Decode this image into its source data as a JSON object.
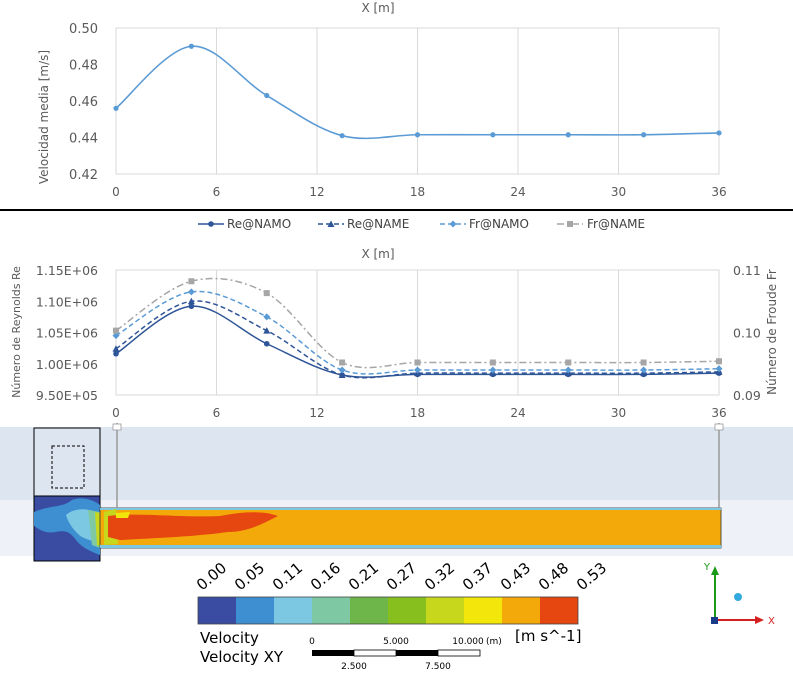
{
  "chart_data": [
    {
      "type": "line",
      "xlabel": "X [m]",
      "ylabel": "Velocidad media [m/s]",
      "xlim": [
        0,
        36
      ],
      "ylim": [
        0.42,
        0.5
      ],
      "xticks": [
        "0",
        "6",
        "12",
        "18",
        "24",
        "30",
        "36"
      ],
      "yticks": [
        "0.42",
        "0.44",
        "0.46",
        "0.48",
        "0.50"
      ],
      "grid": "vertical",
      "series": [
        {
          "color": "#5b9bd5",
          "x": [
            0,
            4.5,
            9,
            13.5,
            18,
            22.5,
            27,
            31.5,
            36
          ],
          "y": [
            0.456,
            0.49,
            0.463,
            0.441,
            0.4415,
            0.4415,
            0.4415,
            0.4415,
            0.4425
          ]
        }
      ]
    },
    {
      "type": "line",
      "xlabel": "X [m]",
      "ylabel": "Número de Reynolds Re",
      "y2label": "Número de Froude Fr",
      "xlim": [
        0,
        36
      ],
      "ylim": [
        950000,
        1150000
      ],
      "y2lim": [
        0.09,
        0.11
      ],
      "xticks": [
        "0",
        "6",
        "12",
        "18",
        "24",
        "30",
        "36"
      ],
      "yticks": [
        "9.50E+05",
        "1.00E+06",
        "1.05E+06",
        "1.10E+06",
        "1.15E+06"
      ],
      "y2ticks": [
        "0.09",
        "0.10",
        "0.11"
      ],
      "legend_position": "top",
      "grid": "vertical",
      "series": [
        {
          "name": "Re@NAMO",
          "axis": "left",
          "dash": "solid",
          "marker": "circle",
          "color": "#2e5597",
          "x": [
            0,
            4.5,
            9,
            13.5,
            18,
            22.5,
            27,
            31.5,
            36
          ],
          "y": [
            1016000,
            1092000,
            1032000,
            982000,
            983000,
            983000,
            983000,
            983000,
            985000
          ]
        },
        {
          "name": "Re@NAME",
          "axis": "left",
          "dash": "dash",
          "marker": "triangle",
          "color": "#2e5597",
          "x": [
            0,
            4.5,
            9,
            13.5,
            18,
            22.5,
            27,
            31.5,
            36
          ],
          "y": [
            1024000,
            1100000,
            1053000,
            982000,
            985000,
            985000,
            985000,
            985000,
            987000
          ]
        },
        {
          "name": "Fr@NAMO",
          "axis": "right",
          "dash": "dash",
          "marker": "diamond",
          "color": "#5b9bd5",
          "x": [
            0,
            4.5,
            9,
            13.5,
            18,
            22.5,
            27,
            31.5,
            36
          ],
          "y": [
            0.0995,
            0.1065,
            0.1025,
            0.094,
            0.094,
            0.094,
            0.094,
            0.094,
            0.0942
          ]
        },
        {
          "name": "Fr@NAME",
          "axis": "right",
          "dash": "dashdot",
          "marker": "square",
          "color": "#a6a6a6",
          "x": [
            0,
            4.5,
            9,
            13.5,
            18,
            22.5,
            27,
            31.5,
            36
          ],
          "y": [
            0.1003,
            0.1082,
            0.1063,
            0.0952,
            0.0952,
            0.0952,
            0.0952,
            0.0952,
            0.0954
          ]
        }
      ]
    },
    {
      "type": "heatmap",
      "title": "Velocity",
      "subtitle": "Velocity XY",
      "unit": "[m s^-1]",
      "legend_levels": [
        "0.00",
        "0.05",
        "0.11",
        "0.16",
        "0.21",
        "0.27",
        "0.32",
        "0.37",
        "0.43",
        "0.48",
        "0.53"
      ],
      "legend_colors": [
        "#3a4ba2",
        "#3e8ed2",
        "#7cc7e2",
        "#7ec9a4",
        "#6fb64a",
        "#87c01e",
        "#c6d71c",
        "#f2e60a",
        "#f3a90a",
        "#e6460f"
      ],
      "scale_top": [
        "0",
        "5.000",
        "10.000",
        "(m)"
      ],
      "scale_bottom": [
        "2.500",
        "7.500"
      ],
      "axis_labels": [
        "Y",
        "X"
      ],
      "background_color": "#dde5f0"
    }
  ]
}
